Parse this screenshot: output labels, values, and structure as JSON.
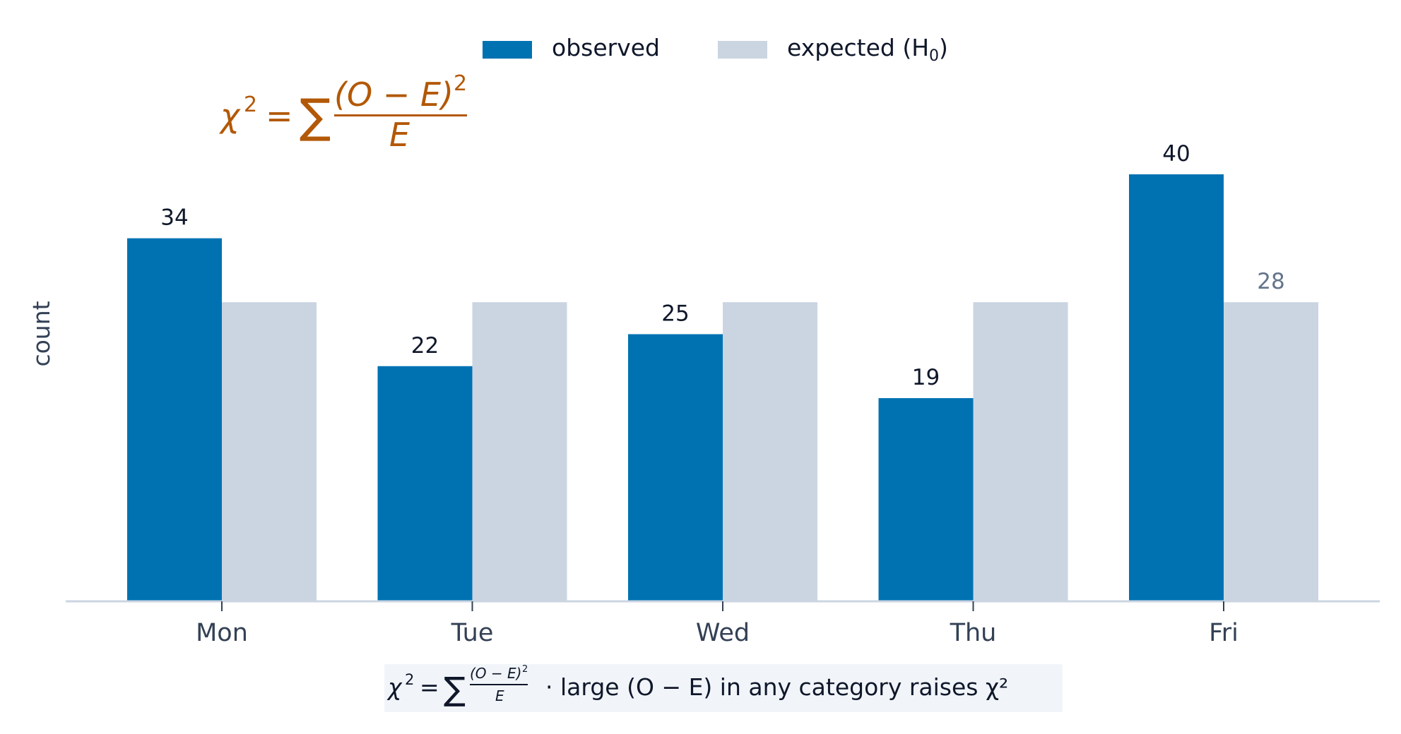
{
  "chart_data": {
    "type": "bar",
    "categories": [
      "Mon",
      "Tue",
      "Wed",
      "Thu",
      "Fri"
    ],
    "series": [
      {
        "name": "observed",
        "values": [
          34,
          22,
          25,
          19,
          40
        ],
        "color": "#0072b2"
      },
      {
        "name": "expected (H0)",
        "values": [
          28,
          28,
          28,
          28,
          28
        ],
        "color": "#cbd5e1"
      }
    ],
    "observed_labels": [
      "34",
      "22",
      "25",
      "19",
      "40"
    ],
    "expected_label": "28",
    "xlabel": "",
    "ylabel": "count",
    "ylim": [
      0,
      42.5
    ],
    "grid": false,
    "legend": {
      "position": "top-center",
      "observed_label": "observed",
      "expected_label_text": "expected (H",
      "expected_label_sub": "0",
      "expected_label_close": ")"
    },
    "formula_annotation": "χ² = Σ (O − E)² / E",
    "footer": {
      "text": "· large (O − E) in any category raises χ²"
    }
  },
  "colors": {
    "observed": "#0072b2",
    "expected": "#cbd5e1",
    "formula": "#b35806",
    "axis": "#cbd5e1",
    "tick_text": "#334155",
    "label_text": "#0f172a",
    "expected_value_text": "#64748b",
    "footer_bg": "#f1f5f9"
  }
}
